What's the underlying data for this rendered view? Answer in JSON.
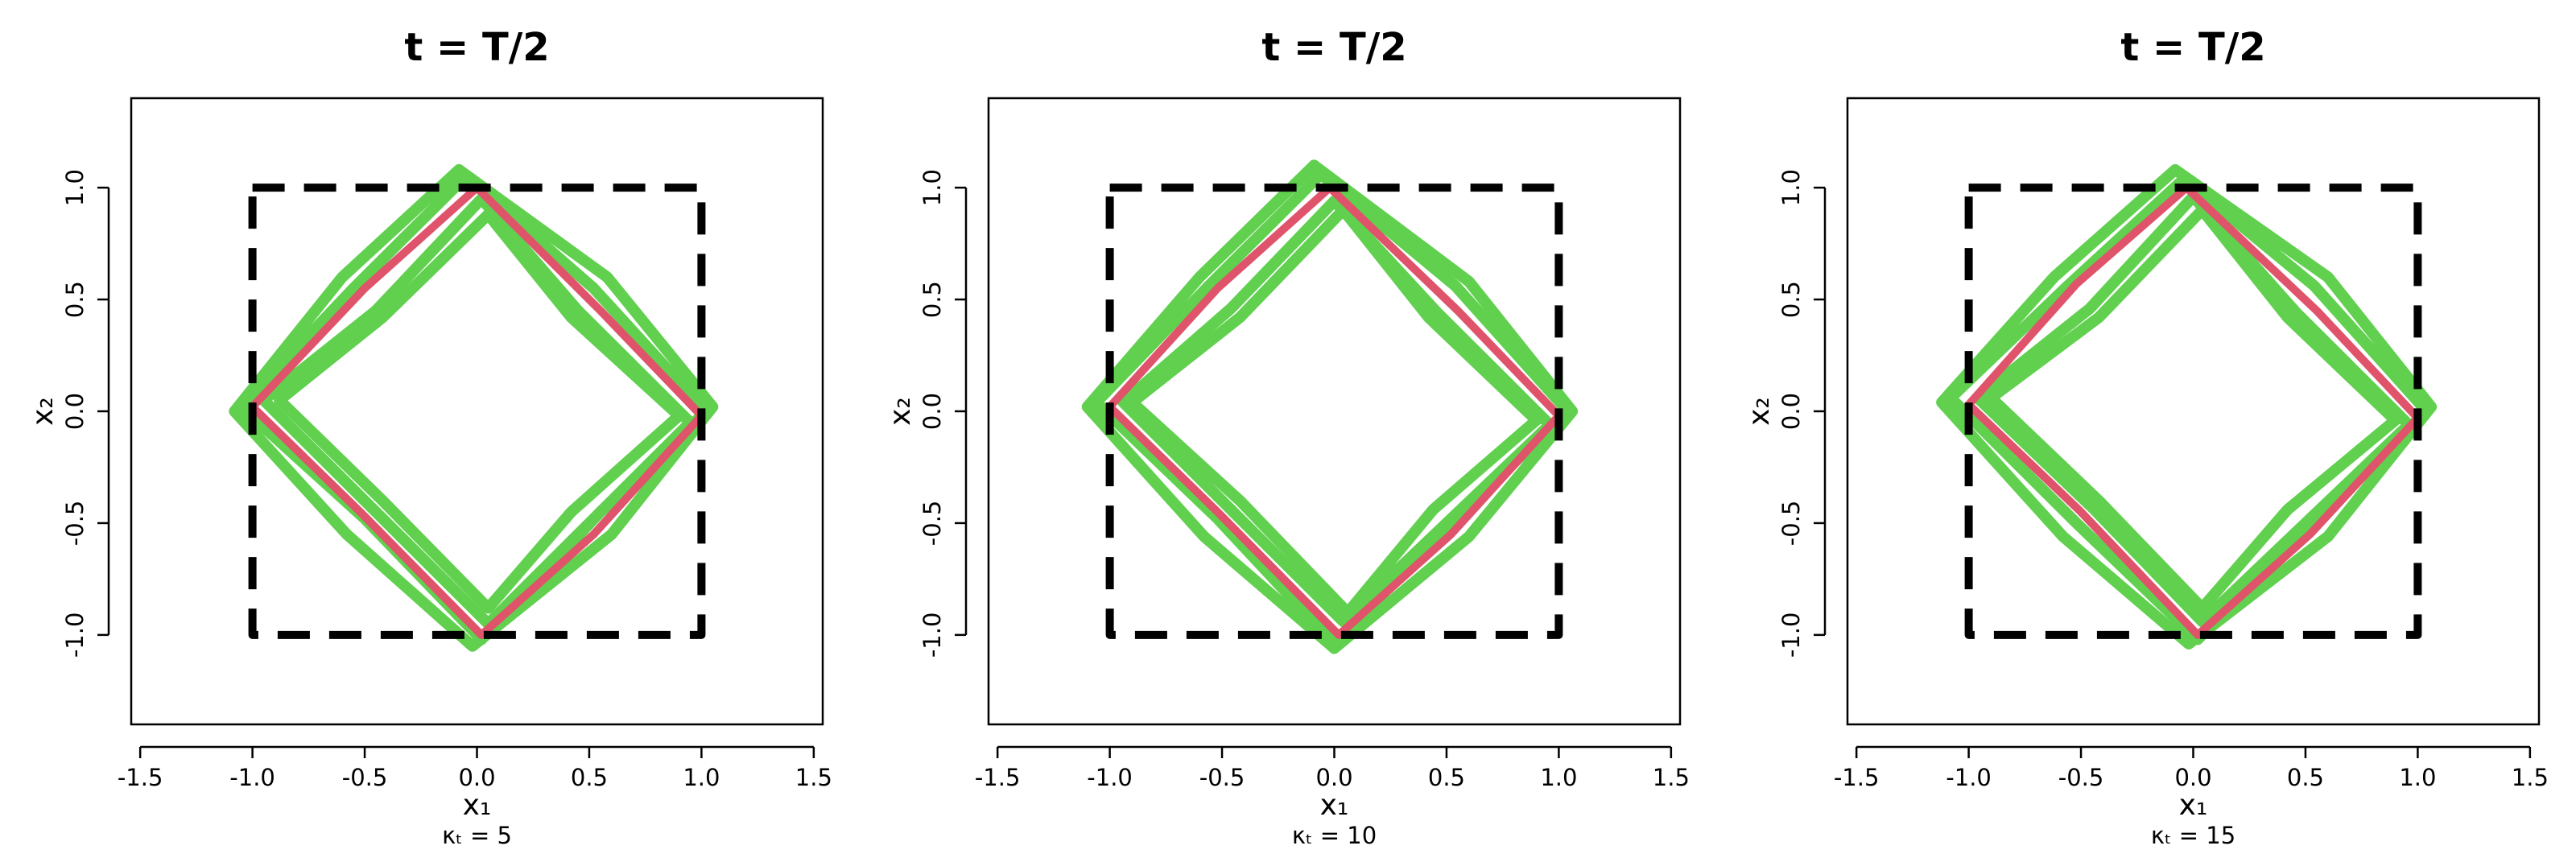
{
  "chart_data": [
    {
      "type": "line",
      "title": "t = T/2",
      "xlabel": "x₁",
      "ylabel": "x₂",
      "subtitle": "κₜ = 5",
      "xlim": [
        -1.54,
        1.54
      ],
      "ylim": [
        -1.4,
        1.4
      ],
      "xticks": [
        -1.5,
        {
          "value": -1,
          "label": "-1.0"
        },
        -0.5,
        {
          "value": 0,
          "label": "0.0"
        },
        0.5,
        {
          "value": 1,
          "label": "1.0"
        },
        1.5
      ],
      "yticks": [
        {
          "value": -1,
          "label": "-1.0"
        },
        -0.5,
        {
          "value": 0,
          "label": "0.0"
        },
        0.5,
        {
          "value": 1,
          "label": "1.0"
        }
      ],
      "series": [
        {
          "color": "#61d04f",
          "linewidth": 14,
          "x": [
            -0.05,
            -0.55,
            -1.05,
            -0.5,
            0.02,
            0.55,
            1.02,
            0.52,
            -0.05
          ],
          "values": [
            1.05,
            0.55,
            0.02,
            -0.48,
            -1.02,
            -0.45,
            0.0,
            0.55,
            1.05
          ]
        },
        {
          "color": "#61d04f",
          "linewidth": 14,
          "x": [
            0.02,
            -0.45,
            -0.95,
            -0.45,
            0.05,
            0.5,
            0.95,
            0.45,
            0.02
          ],
          "values": [
            0.95,
            0.45,
            0.05,
            -0.45,
            -0.95,
            -0.5,
            -0.05,
            0.45,
            0.95
          ]
        },
        {
          "color": "#61d04f",
          "linewidth": 14,
          "x": [
            -0.08,
            -0.6,
            -1.08,
            -0.58,
            -0.02,
            0.6,
            1.05,
            0.58,
            -0.08
          ],
          "values": [
            1.08,
            0.6,
            0.0,
            -0.55,
            -1.05,
            -0.55,
            0.02,
            0.6,
            1.08
          ]
        },
        {
          "color": "#61d04f",
          "linewidth": 14,
          "x": [
            0.05,
            -0.42,
            -0.88,
            -0.42,
            0.05,
            0.42,
            0.9,
            0.42,
            0.05
          ],
          "values": [
            0.88,
            0.42,
            0.05,
            -0.4,
            -0.88,
            -0.45,
            -0.02,
            0.42,
            0.88
          ]
        },
        {
          "color": "#df536b",
          "linewidth": 10,
          "x": [
            0,
            -0.5,
            -1,
            -0.52,
            0.02,
            0.52,
            1,
            0.55,
            0
          ],
          "values": [
            1,
            0.55,
            0.02,
            -0.45,
            -1,
            -0.55,
            -0.02,
            0.45,
            1
          ]
        },
        {
          "color": "#000000",
          "linewidth": 10,
          "dash": true,
          "x": [
            -1,
            1,
            1,
            -1,
            -1
          ],
          "values": [
            1,
            1,
            -1,
            -1,
            1
          ]
        }
      ]
    },
    {
      "type": "line",
      "title": "t = T/2",
      "xlabel": "x₁",
      "ylabel": "x₂",
      "subtitle": "κₜ = 10",
      "xlim": [
        -1.54,
        1.54
      ],
      "ylim": [
        -1.4,
        1.4
      ],
      "xticks": [
        -1.5,
        {
          "value": -1,
          "label": "-1.0"
        },
        -0.5,
        {
          "value": 0,
          "label": "0.0"
        },
        0.5,
        {
          "value": 1,
          "label": "1.0"
        },
        1.5
      ],
      "yticks": [
        {
          "value": -1,
          "label": "-1.0"
        },
        -0.5,
        {
          "value": 0,
          "label": "0.0"
        },
        0.5,
        {
          "value": 1,
          "label": "1.0"
        }
      ],
      "series": [
        {
          "color": "#61d04f",
          "linewidth": 14,
          "x": [
            -0.06,
            -0.56,
            -1.06,
            -0.52,
            0.0,
            0.56,
            1.04,
            0.54,
            -0.06
          ],
          "values": [
            1.06,
            0.56,
            0.04,
            -0.48,
            -1.04,
            -0.46,
            0.0,
            0.56,
            1.06
          ]
        },
        {
          "color": "#61d04f",
          "linewidth": 14,
          "x": [
            0.0,
            -0.46,
            -0.94,
            -0.46,
            0.04,
            0.5,
            0.96,
            0.46,
            0.0
          ],
          "values": [
            0.94,
            0.46,
            0.04,
            -0.44,
            -0.94,
            -0.5,
            -0.06,
            0.44,
            0.94
          ]
        },
        {
          "color": "#61d04f",
          "linewidth": 14,
          "x": [
            -0.09,
            -0.6,
            -1.1,
            -0.58,
            0.0,
            0.6,
            1.06,
            0.6,
            -0.09
          ],
          "values": [
            1.1,
            0.6,
            0.02,
            -0.56,
            -1.06,
            -0.56,
            0.0,
            0.58,
            1.1
          ]
        },
        {
          "color": "#61d04f",
          "linewidth": 14,
          "x": [
            0.04,
            -0.42,
            -0.9,
            -0.42,
            0.06,
            0.44,
            0.9,
            0.42,
            0.04
          ],
          "values": [
            0.9,
            0.42,
            0.04,
            -0.4,
            -0.9,
            -0.44,
            -0.04,
            0.42,
            0.9
          ]
        },
        {
          "color": "#df536b",
          "linewidth": 10,
          "x": [
            -0.02,
            -0.52,
            -1,
            -0.52,
            0.02,
            0.52,
            1,
            0.55,
            -0.02
          ],
          "values": [
            1,
            0.55,
            0.02,
            -0.45,
            -1,
            -0.55,
            -0.02,
            0.45,
            1
          ]
        },
        {
          "color": "#000000",
          "linewidth": 10,
          "dash": true,
          "x": [
            -1,
            1,
            1,
            -1,
            -1
          ],
          "values": [
            1,
            1,
            -1,
            -1,
            1
          ]
        }
      ]
    },
    {
      "type": "line",
      "title": "t = T/2",
      "xlabel": "x₁",
      "ylabel": "x₂",
      "subtitle": "κₜ = 15",
      "xlim": [
        -1.54,
        1.54
      ],
      "ylim": [
        -1.4,
        1.4
      ],
      "xticks": [
        -1.5,
        {
          "value": -1,
          "label": "-1.0"
        },
        -0.5,
        {
          "value": 0,
          "label": "0.0"
        },
        0.5,
        {
          "value": 1,
          "label": "1.0"
        },
        1.5
      ],
      "yticks": [
        {
          "value": -1,
          "label": "-1.0"
        },
        -0.5,
        {
          "value": 0,
          "label": "0.0"
        },
        0.5,
        {
          "value": 1,
          "label": "1.0"
        }
      ],
      "series": [
        {
          "color": "#61d04f",
          "linewidth": 14,
          "x": [
            -0.04,
            -0.56,
            -1.08,
            -0.52,
            0.02,
            0.56,
            1.04,
            0.54,
            -0.04
          ],
          "values": [
            1.04,
            0.56,
            0.06,
            -0.5,
            -1.02,
            -0.46,
            0.0,
            0.56,
            1.04
          ]
        },
        {
          "color": "#61d04f",
          "linewidth": 14,
          "x": [
            0.0,
            -0.46,
            -0.96,
            -0.44,
            0.04,
            0.5,
            0.96,
            0.46,
            0.0
          ],
          "values": [
            0.96,
            0.46,
            0.06,
            -0.44,
            -0.94,
            -0.5,
            -0.06,
            0.44,
            0.96
          ]
        },
        {
          "color": "#61d04f",
          "linewidth": 14,
          "x": [
            -0.08,
            -0.62,
            -1.12,
            -0.58,
            -0.02,
            0.6,
            1.06,
            0.6,
            -0.08
          ],
          "values": [
            1.08,
            0.6,
            0.04,
            -0.56,
            -1.04,
            -0.56,
            0.02,
            0.6,
            1.08
          ]
        },
        {
          "color": "#61d04f",
          "linewidth": 14,
          "x": [
            0.04,
            -0.42,
            -0.9,
            -0.42,
            0.04,
            0.42,
            0.9,
            0.42,
            0.04
          ],
          "values": [
            0.9,
            0.42,
            0.06,
            -0.4,
            -0.88,
            -0.44,
            -0.04,
            0.42,
            0.9
          ]
        },
        {
          "color": "#df536b",
          "linewidth": 10,
          "x": [
            -0.03,
            -0.52,
            -1,
            -0.5,
            0.02,
            0.52,
            1,
            0.55,
            -0.03
          ],
          "values": [
            1,
            0.57,
            0.03,
            -0.45,
            -1,
            -0.55,
            -0.03,
            0.45,
            1
          ]
        },
        {
          "color": "#000000",
          "linewidth": 10,
          "dash": true,
          "x": [
            -1,
            1,
            1,
            -1,
            -1
          ],
          "values": [
            1,
            1,
            -1,
            -1,
            1
          ]
        }
      ]
    }
  ]
}
